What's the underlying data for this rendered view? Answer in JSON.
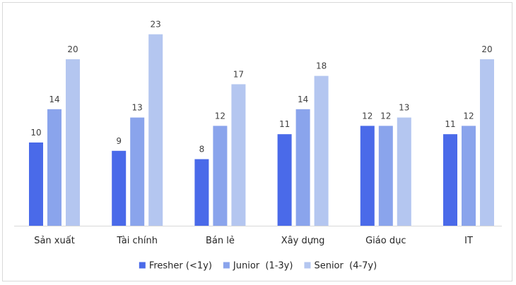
{
  "chart_data": {
    "type": "bar",
    "categories": [
      "Sản xuất",
      "Tài chính",
      "Bán lẻ",
      "Xây dựng",
      "Giáo dục",
      "IT"
    ],
    "series": [
      {
        "name": "Fresher (<1y)",
        "color": "#4a6ae9",
        "values": [
          10,
          9,
          8,
          11,
          12,
          11
        ]
      },
      {
        "name": "Junior  (1-3y)",
        "color": "#8aa4ec",
        "values": [
          14,
          13,
          12,
          14,
          12,
          12
        ]
      },
      {
        "name": "Senior  (4-7y)",
        "color": "#b4c6f0",
        "values": [
          20,
          23,
          17,
          18,
          13,
          20
        ]
      }
    ],
    "title": "",
    "xlabel": "",
    "ylabel": "",
    "ylim": [
      0,
      24
    ],
    "data_labels": true,
    "grid": false,
    "legend_position": "bottom",
    "axis_color": "#d9d9d9"
  }
}
